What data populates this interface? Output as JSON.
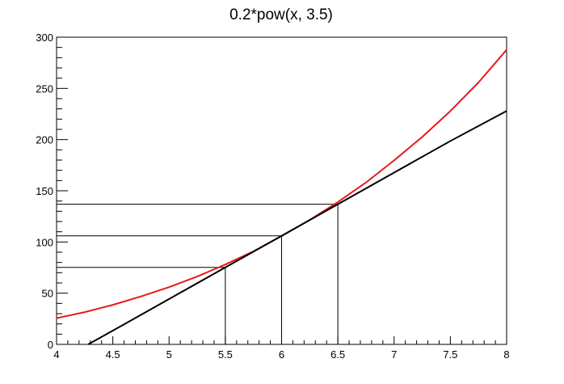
{
  "chart_data": {
    "type": "line",
    "title": "0.2*pow(x, 3.5)",
    "xlabel": "",
    "ylabel": "",
    "xlim": [
      4,
      8
    ],
    "ylim": [
      0,
      300
    ],
    "x_ticks": [
      {
        "value": 4,
        "label": "4"
      },
      {
        "value": 4.5,
        "label": "4.5"
      },
      {
        "value": 5,
        "label": "5"
      },
      {
        "value": 5.5,
        "label": "5.5"
      },
      {
        "value": 6,
        "label": "6"
      },
      {
        "value": 6.5,
        "label": "6.5"
      },
      {
        "value": 7,
        "label": "7"
      },
      {
        "value": 7.5,
        "label": "7.5"
      },
      {
        "value": 8,
        "label": "8"
      }
    ],
    "y_ticks": [
      {
        "value": 0,
        "label": "0"
      },
      {
        "value": 50,
        "label": "50"
      },
      {
        "value": 100,
        "label": "100"
      },
      {
        "value": 150,
        "label": "150"
      },
      {
        "value": 200,
        "label": "200"
      },
      {
        "value": 250,
        "label": "250"
      },
      {
        "value": 300,
        "label": "300"
      }
    ],
    "grid": false,
    "legend": "none",
    "series": [
      {
        "color": "#e8191c",
        "x": [
          4.0,
          4.25,
          4.5,
          4.75,
          5.0,
          5.25,
          5.5,
          5.75,
          6.0,
          6.25,
          6.5,
          6.75,
          7.0,
          7.25,
          7.5,
          7.75,
          8.0
        ],
        "values": [
          25.6,
          31.5,
          38.6,
          46.8,
          55.9,
          66.3,
          78.0,
          90.9,
          105.8,
          121.5,
          139.0,
          158.1,
          179.7,
          202.6,
          227.9,
          255.8,
          287.7
        ]
      },
      {
        "color": "#000000",
        "x": [
          4.28,
          4.5,
          5.0,
          5.5,
          6.0,
          6.5,
          7.0,
          7.5,
          8.0
        ],
        "values": [
          0.0,
          13.4,
          44.3,
          75.2,
          106.0,
          136.9,
          167.8,
          198.6,
          228.0
        ]
      }
    ],
    "annotations": [
      {
        "x": 5.5,
        "y": 75.2
      },
      {
        "x": 6.0,
        "y": 106.0
      },
      {
        "x": 6.5,
        "y": 136.9
      }
    ],
    "line_colors": {
      "axis": "#000000"
    }
  }
}
